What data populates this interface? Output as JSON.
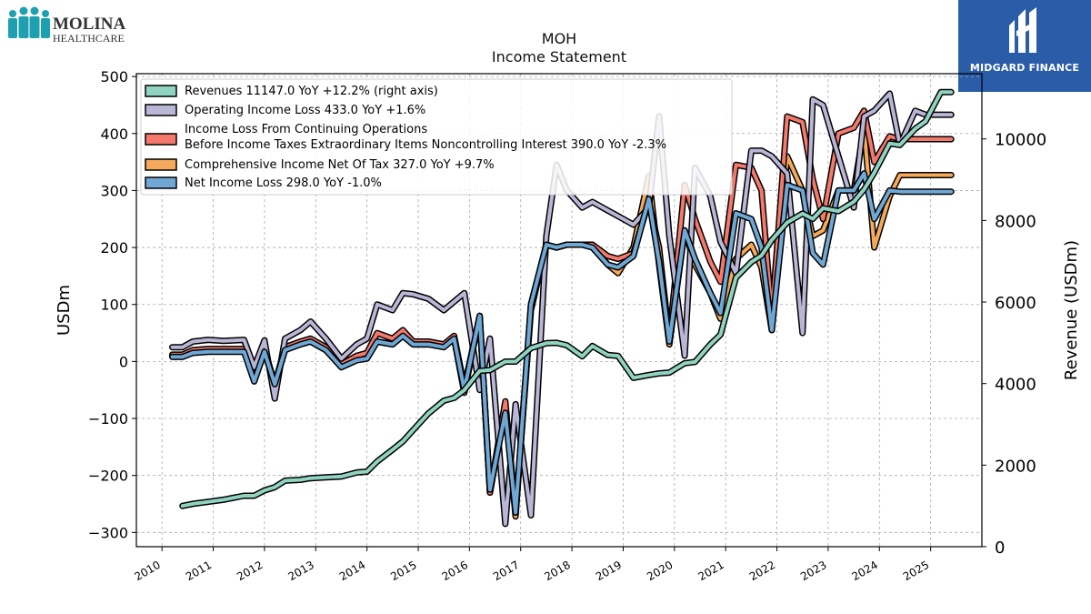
{
  "brand": {
    "left_logo_line1": "MOLINA",
    "left_logo_line2": "HEALTHCARE",
    "right_logo_text": "MIDGARD FINANCE",
    "right_logo_color": "#2a5ca8"
  },
  "chart_data": {
    "type": "line",
    "title": "MOH",
    "subtitle": "Income Statement",
    "ylabel": "USDm",
    "ylabel_right": "Revenue (USDm)",
    "ylim": [
      -325,
      505
    ],
    "ylim_right": [
      0,
      11600
    ],
    "xlim": [
      2009.5,
      2026.0
    ],
    "yticks": [
      -300,
      -200,
      -100,
      0,
      100,
      200,
      300,
      400,
      500
    ],
    "yticks_right": [
      0,
      2000,
      4000,
      6000,
      8000,
      10000
    ],
    "xticks": [
      2010,
      2011,
      2012,
      2013,
      2014,
      2015,
      2016,
      2017,
      2018,
      2019,
      2020,
      2021,
      2022,
      2023,
      2024,
      2025
    ],
    "grid": true,
    "legend_position": "top-left",
    "legend": [
      "Revenues  11147.0 YoY +12.2% (right axis)",
      "Operating Income Loss  433.0 YoY +1.6%",
      "Income Loss From Continuing Operations",
      "Before Income Taxes Extraordinary Items Noncontrolling Interest  390.0 YoY -2.3%",
      "Comprehensive Income Net Of Tax  327.0 YoY +9.7%",
      "Net Income Loss  298.0 YoY -1.0%"
    ],
    "series": [
      {
        "name": "Revenues",
        "axis": "right",
        "color": "#8fd3c0",
        "x": [
          2010.4,
          2010.6,
          2010.9,
          2011.2,
          2011.4,
          2011.6,
          2011.8,
          2012.0,
          2012.2,
          2012.4,
          2012.7,
          2012.9,
          2013.2,
          2013.5,
          2013.8,
          2014.0,
          2014.2,
          2014.5,
          2014.7,
          2014.9,
          2015.2,
          2015.5,
          2015.7,
          2015.9,
          2016.2,
          2016.4,
          2016.7,
          2016.9,
          2017.2,
          2017.5,
          2017.7,
          2017.9,
          2018.2,
          2018.4,
          2018.7,
          2018.9,
          2019.2,
          2019.5,
          2019.7,
          2019.9,
          2020.2,
          2020.4,
          2020.7,
          2020.9,
          2021.2,
          2021.5,
          2021.7,
          2021.9,
          2022.2,
          2022.5,
          2022.7,
          2022.9,
          2023.2,
          2023.5,
          2023.7,
          2023.9,
          2024.2,
          2024.4,
          2024.7,
          2024.9,
          2025.2,
          2025.4
        ],
        "values": [
          1000,
          1050,
          1100,
          1150,
          1200,
          1250,
          1250,
          1380,
          1460,
          1620,
          1640,
          1680,
          1700,
          1720,
          1820,
          1840,
          2090,
          2380,
          2580,
          2860,
          3270,
          3580,
          3650,
          3840,
          4310,
          4330,
          4540,
          4540,
          4870,
          4990,
          5000,
          4940,
          4670,
          4920,
          4700,
          4680,
          4140,
          4210,
          4250,
          4270,
          4500,
          4530,
          4960,
          5200,
          6600,
          6980,
          7140,
          7520,
          7950,
          8170,
          8040,
          8300,
          8230,
          8460,
          8760,
          9170,
          9890,
          9850,
          10250,
          10430,
          11147,
          11147
        ]
      },
      {
        "name": "Operating Income Loss",
        "axis": "left",
        "color": "#b9b6d6",
        "x": [
          2010.2,
          2010.4,
          2010.6,
          2010.9,
          2011.2,
          2011.4,
          2011.6,
          2011.8,
          2012.0,
          2012.2,
          2012.4,
          2012.7,
          2012.9,
          2013.2,
          2013.5,
          2013.8,
          2014.0,
          2014.2,
          2014.5,
          2014.7,
          2014.9,
          2015.2,
          2015.5,
          2015.7,
          2015.9,
          2016.2,
          2016.4,
          2016.7,
          2016.9,
          2017.2,
          2017.5,
          2017.7,
          2017.9,
          2018.2,
          2018.4,
          2018.7,
          2018.9,
          2019.2,
          2019.5,
          2019.7,
          2019.9,
          2020.2,
          2020.4,
          2020.7,
          2020.9,
          2021.2,
          2021.5,
          2021.7,
          2021.9,
          2022.2,
          2022.5,
          2022.7,
          2022.9,
          2023.2,
          2023.5,
          2023.7,
          2023.9,
          2024.2,
          2024.4,
          2024.7,
          2024.9,
          2025.2,
          2025.4
        ],
        "values": [
          25,
          25,
          35,
          38,
          36,
          37,
          38,
          -10,
          37,
          -65,
          40,
          55,
          70,
          40,
          5,
          30,
          40,
          100,
          90,
          120,
          118,
          110,
          90,
          105,
          120,
          -50,
          40,
          -285,
          -75,
          -270,
          220,
          345,
          300,
          270,
          280,
          265,
          255,
          240,
          270,
          430,
          220,
          10,
          340,
          290,
          210,
          155,
          370,
          370,
          360,
          330,
          50,
          460,
          450,
          360,
          270,
          430,
          440,
          470,
          380,
          440,
          433,
          433,
          433
        ]
      },
      {
        "name": "Income Loss From Continuing Operations Before Income Taxes Extraordinary Items Noncontrolling Interest",
        "axis": "left",
        "color": "#f4796c",
        "x": [
          2010.2,
          2010.4,
          2010.6,
          2010.9,
          2011.2,
          2011.4,
          2011.6,
          2011.8,
          2012.0,
          2012.2,
          2012.4,
          2012.7,
          2012.9,
          2013.2,
          2013.5,
          2013.8,
          2014.0,
          2014.2,
          2014.5,
          2014.7,
          2014.9,
          2015.2,
          2015.5,
          2015.7,
          2015.9,
          2016.2,
          2016.4,
          2016.7,
          2016.9,
          2017.2,
          2017.5,
          2017.7,
          2017.9,
          2018.2,
          2018.4,
          2018.7,
          2018.9,
          2019.2,
          2019.5,
          2019.7,
          2019.9,
          2020.2,
          2020.4,
          2020.7,
          2020.9,
          2021.2,
          2021.5,
          2021.7,
          2021.9,
          2022.2,
          2022.5,
          2022.7,
          2022.9,
          2023.2,
          2023.5,
          2023.7,
          2023.9,
          2024.2,
          2024.4,
          2024.7,
          2024.9,
          2025.2,
          2025.4
        ],
        "values": [
          12,
          12,
          20,
          22,
          22,
          22,
          22,
          -30,
          22,
          -40,
          25,
          35,
          40,
          25,
          -5,
          10,
          15,
          50,
          40,
          55,
          35,
          35,
          30,
          45,
          -45,
          80,
          -230,
          -70,
          -265,
          90,
          205,
          200,
          205,
          205,
          205,
          185,
          180,
          190,
          280,
          200,
          40,
          310,
          250,
          175,
          140,
          345,
          340,
          300,
          80,
          430,
          420,
          320,
          250,
          400,
          410,
          440,
          350,
          395,
          390,
          390,
          390,
          390,
          390
        ]
      },
      {
        "name": "Comprehensive Income Net Of Tax",
        "axis": "left",
        "color": "#f5a95a",
        "x": [
          2010.2,
          2010.4,
          2010.6,
          2010.9,
          2011.2,
          2011.4,
          2011.6,
          2011.8,
          2012.0,
          2012.2,
          2012.4,
          2012.7,
          2012.9,
          2013.2,
          2013.5,
          2013.8,
          2014.0,
          2014.2,
          2014.5,
          2014.7,
          2014.9,
          2015.2,
          2015.5,
          2015.7,
          2015.9,
          2016.2,
          2016.4,
          2016.7,
          2016.9,
          2017.2,
          2017.5,
          2017.7,
          2017.9,
          2018.2,
          2018.4,
          2018.7,
          2018.9,
          2019.2,
          2019.5,
          2019.7,
          2019.9,
          2020.2,
          2020.4,
          2020.7,
          2020.9,
          2021.2,
          2021.5,
          2021.7,
          2021.9,
          2022.2,
          2022.5,
          2022.7,
          2022.9,
          2023.2,
          2023.5,
          2023.7,
          2023.9,
          2024.2,
          2024.4,
          2024.7,
          2024.9,
          2025.2,
          2025.4
        ],
        "values": [
          10,
          10,
          18,
          20,
          20,
          20,
          20,
          -35,
          20,
          -40,
          20,
          32,
          35,
          20,
          -10,
          5,
          10,
          35,
          30,
          45,
          30,
          30,
          28,
          40,
          -55,
          80,
          -230,
          -80,
          -272,
          100,
          205,
          200,
          205,
          205,
          205,
          170,
          155,
          200,
          325,
          170,
          30,
          230,
          170,
          120,
          75,
          180,
          205,
          165,
          55,
          360,
          300,
          220,
          230,
          300,
          300,
          410,
          200,
          290,
          327,
          327,
          327,
          327,
          327
        ]
      },
      {
        "name": "Net Income Loss",
        "axis": "left",
        "color": "#6fa8d4",
        "x": [
          2010.2,
          2010.4,
          2010.6,
          2010.9,
          2011.2,
          2011.4,
          2011.6,
          2011.8,
          2012.0,
          2012.2,
          2012.4,
          2012.7,
          2012.9,
          2013.2,
          2013.5,
          2013.8,
          2014.0,
          2014.2,
          2014.5,
          2014.7,
          2014.9,
          2015.2,
          2015.5,
          2015.7,
          2015.9,
          2016.2,
          2016.4,
          2016.7,
          2016.9,
          2017.2,
          2017.5,
          2017.7,
          2017.9,
          2018.2,
          2018.4,
          2018.7,
          2018.9,
          2019.2,
          2019.5,
          2019.7,
          2019.9,
          2020.2,
          2020.4,
          2020.7,
          2020.9,
          2021.2,
          2021.5,
          2021.7,
          2021.9,
          2022.2,
          2022.5,
          2022.7,
          2022.9,
          2023.2,
          2023.5,
          2023.7,
          2023.9,
          2024.2,
          2024.4,
          2024.7,
          2024.9,
          2025.2,
          2025.4
        ],
        "values": [
          8,
          8,
          15,
          17,
          17,
          17,
          17,
          -35,
          17,
          -40,
          20,
          30,
          35,
          20,
          -10,
          2,
          5,
          35,
          30,
          45,
          30,
          30,
          25,
          40,
          -50,
          80,
          -225,
          -90,
          -265,
          100,
          205,
          200,
          205,
          205,
          200,
          170,
          165,
          185,
          285,
          175,
          35,
          230,
          180,
          120,
          85,
          260,
          250,
          200,
          55,
          310,
          300,
          190,
          170,
          300,
          300,
          330,
          250,
          300,
          298,
          298,
          298,
          298,
          298
        ]
      }
    ]
  }
}
